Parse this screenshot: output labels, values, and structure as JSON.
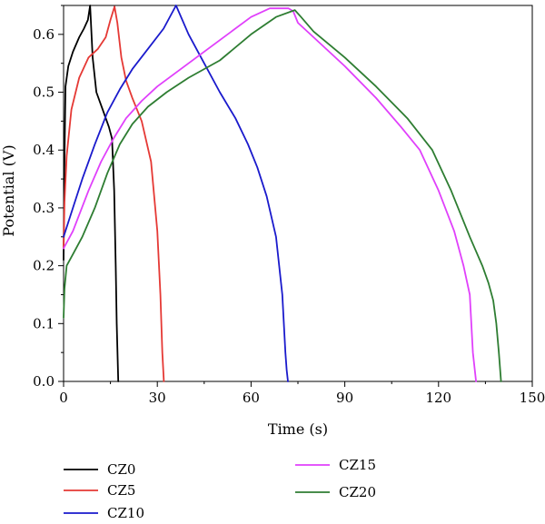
{
  "chart_data": {
    "type": "line",
    "xlabel": "Time (s)",
    "ylabel": "Potential (V)",
    "xlim": [
      0,
      150
    ],
    "ylim": [
      0,
      0.65
    ],
    "xticks": [
      0,
      30,
      60,
      90,
      120,
      150
    ],
    "xtick_labels": [
      "0",
      "30",
      "60",
      "90",
      "120",
      "150"
    ],
    "yticks": [
      0.0,
      0.1,
      0.2,
      0.3,
      0.4,
      0.5,
      0.6
    ],
    "ytick_labels": [
      "0.0",
      "0.1",
      "0.2",
      "0.3",
      "0.4",
      "0.5",
      "0.6"
    ],
    "grid": false,
    "legend_position": "bottom",
    "series": [
      {
        "name": "CZ0",
        "color": "#000000",
        "x": [
          0,
          0.2,
          0.6,
          1.5,
          3,
          5,
          6.5,
          7.8,
          8.5,
          9.3,
          10.5,
          12.5,
          14.5,
          15.5,
          16.2,
          16.7,
          17,
          17.5
        ],
        "y": [
          0.21,
          0.35,
          0.51,
          0.545,
          0.57,
          0.595,
          0.61,
          0.625,
          0.65,
          0.56,
          0.5,
          0.47,
          0.44,
          0.42,
          0.33,
          0.2,
          0.1,
          0.0
        ]
      },
      {
        "name": "CZ5",
        "color": "#e53935",
        "x": [
          0,
          0.3,
          1,
          2.5,
          5,
          8,
          11,
          13.5,
          15,
          16.3,
          17.2,
          18.5,
          20,
          22,
          25,
          28,
          30,
          31,
          31.6,
          32.1
        ],
        "y": [
          0.23,
          0.31,
          0.39,
          0.47,
          0.525,
          0.56,
          0.575,
          0.595,
          0.625,
          0.648,
          0.62,
          0.56,
          0.52,
          0.49,
          0.45,
          0.38,
          0.26,
          0.15,
          0.05,
          0.0
        ]
      },
      {
        "name": "CZ10",
        "color": "#1a1acc",
        "x": [
          0,
          3,
          6,
          10,
          14,
          18,
          22,
          27,
          32,
          36,
          40,
          45,
          50,
          55,
          59,
          62,
          65,
          68,
          70,
          71,
          71.4,
          71.8
        ],
        "y": [
          0.25,
          0.3,
          0.35,
          0.41,
          0.465,
          0.505,
          0.54,
          0.575,
          0.61,
          0.65,
          0.6,
          0.55,
          0.5,
          0.455,
          0.41,
          0.37,
          0.32,
          0.25,
          0.15,
          0.05,
          0.02,
          0.0
        ]
      },
      {
        "name": "CZ15",
        "color": "#e040fb",
        "x": [
          0,
          3,
          8,
          12,
          16,
          20,
          25,
          30,
          40,
          50,
          60,
          66,
          72,
          73.5,
          75,
          80,
          90,
          100,
          108,
          114,
          120,
          125,
          128,
          130,
          131,
          132
        ],
        "y": [
          0.23,
          0.26,
          0.33,
          0.38,
          0.42,
          0.455,
          0.485,
          0.51,
          0.55,
          0.59,
          0.63,
          0.645,
          0.645,
          0.64,
          0.62,
          0.595,
          0.545,
          0.49,
          0.44,
          0.4,
          0.33,
          0.26,
          0.2,
          0.15,
          0.05,
          0.0
        ]
      },
      {
        "name": "CZ20",
        "color": "#2e7d32",
        "x": [
          0,
          0.3,
          1,
          3,
          6,
          10,
          14,
          18,
          22,
          27,
          33,
          40,
          50,
          60,
          68,
          74,
          76,
          80,
          90,
          100,
          110,
          118,
          124,
          130,
          134,
          136,
          137.5,
          138.5,
          139.3,
          140
        ],
        "y": [
          0.11,
          0.16,
          0.2,
          0.22,
          0.25,
          0.3,
          0.36,
          0.41,
          0.445,
          0.475,
          0.5,
          0.525,
          0.555,
          0.6,
          0.63,
          0.642,
          0.63,
          0.605,
          0.56,
          0.51,
          0.455,
          0.4,
          0.33,
          0.25,
          0.2,
          0.17,
          0.14,
          0.1,
          0.05,
          0.0
        ]
      }
    ]
  }
}
